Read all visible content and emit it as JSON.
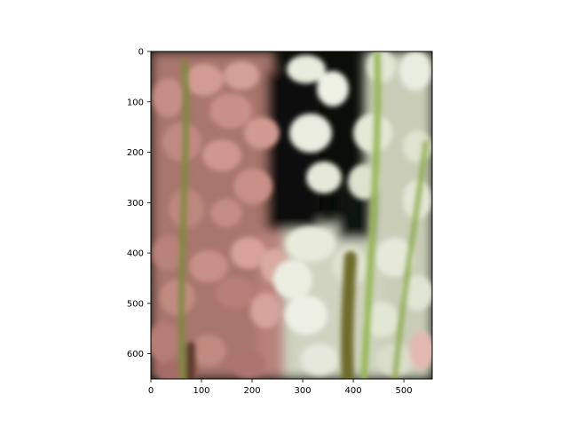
{
  "chart_data": {
    "type": "heatmap",
    "title": "",
    "xlabel": "",
    "ylabel": "",
    "image_width": 556,
    "image_height": 650,
    "xlim": [
      0,
      556
    ],
    "ylim": [
      650,
      0
    ],
    "y_inverted": true,
    "xticks": [
      0,
      100,
      200,
      300,
      400,
      500
    ],
    "yticks": [
      0,
      100,
      200,
      300,
      400,
      500,
      600
    ],
    "xtick_labels": [
      "0",
      "100",
      "200",
      "300",
      "400",
      "500"
    ],
    "ytick_labels": [
      "0",
      "100",
      "200",
      "300",
      "400",
      "500",
      "600"
    ],
    "grid": false,
    "legend": "none",
    "content": "blurred photo of pink and white lupine flower spikes",
    "colors": {
      "pink_flowers": "#c98d84",
      "white_flowers": "#e6e9d8",
      "background": "#0b0d08",
      "stems": "#8fb04e"
    }
  }
}
